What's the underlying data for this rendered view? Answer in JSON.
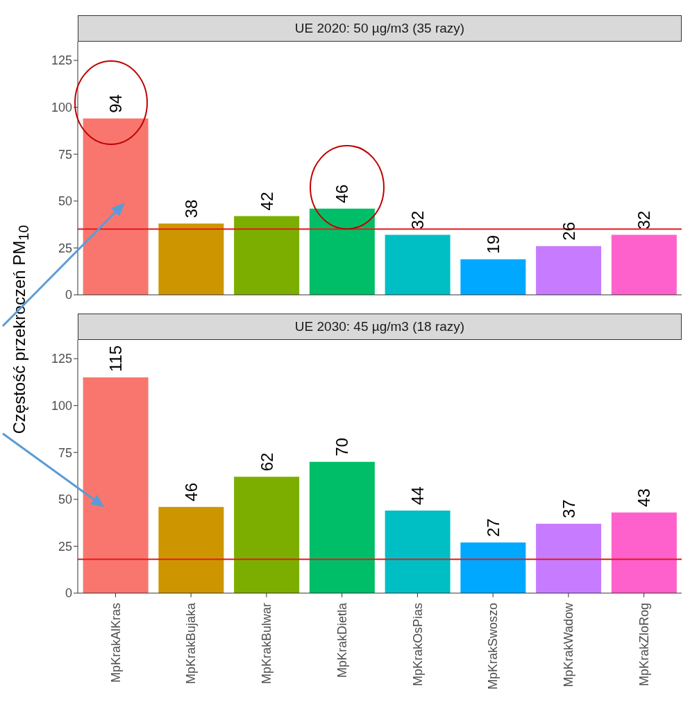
{
  "chart_data": [
    {
      "type": "bar",
      "title": "UE 2020: 50 µg/m3 (35 razy)",
      "ylabel": "Częstość przekroczeń PM$_{10}$",
      "categories": [
        null,
        null,
        null,
        null,
        null,
        null,
        null,
        null
      ],
      "values": [
        94,
        38,
        42,
        46,
        32,
        19,
        26,
        32
      ],
      "colors": [
        "#f8766d",
        "#cd9600",
        "#7cae00",
        "#00be67",
        "#00bfc4",
        "#00a9ff",
        "#c77cff",
        "#ff61cc"
      ],
      "ylim": [
        0,
        135
      ],
      "yticks": [
        0,
        25,
        50,
        75,
        100,
        125
      ],
      "data_labels": true,
      "tick_labels": "y",
      "ref_lines": [
        {
          "axis": "y",
          "value": 35,
          "color": "#e31a1c"
        }
      ]
    },
    {
      "type": "bar",
      "title": "UE 2030: 45 µg/m3 (18 razy)",
      "categories": [
        "MpKrakAlKras",
        "MpKrakBujaka",
        "MpKrakBulwar",
        "MpKrakDietla",
        "MpKrakOsPias",
        "MpKrakSwoszo",
        "MpKrakWadow",
        "MpKrakZloRog"
      ],
      "values": [
        115,
        46,
        62,
        70,
        44,
        27,
        37,
        43
      ],
      "colors": [
        "#f8766d",
        "#cd9600",
        "#7cae00",
        "#00be67",
        "#00bfc4",
        "#00a9ff",
        "#c77cff",
        "#ff61cc"
      ],
      "ylim": [
        0,
        135
      ],
      "yticks": [
        0,
        25,
        50,
        75,
        100,
        125
      ],
      "data_labels": true,
      "ref_lines": [
        {
          "axis": "y",
          "value": 18,
          "color": "#e31a1c"
        }
      ]
    }
  ]
}
